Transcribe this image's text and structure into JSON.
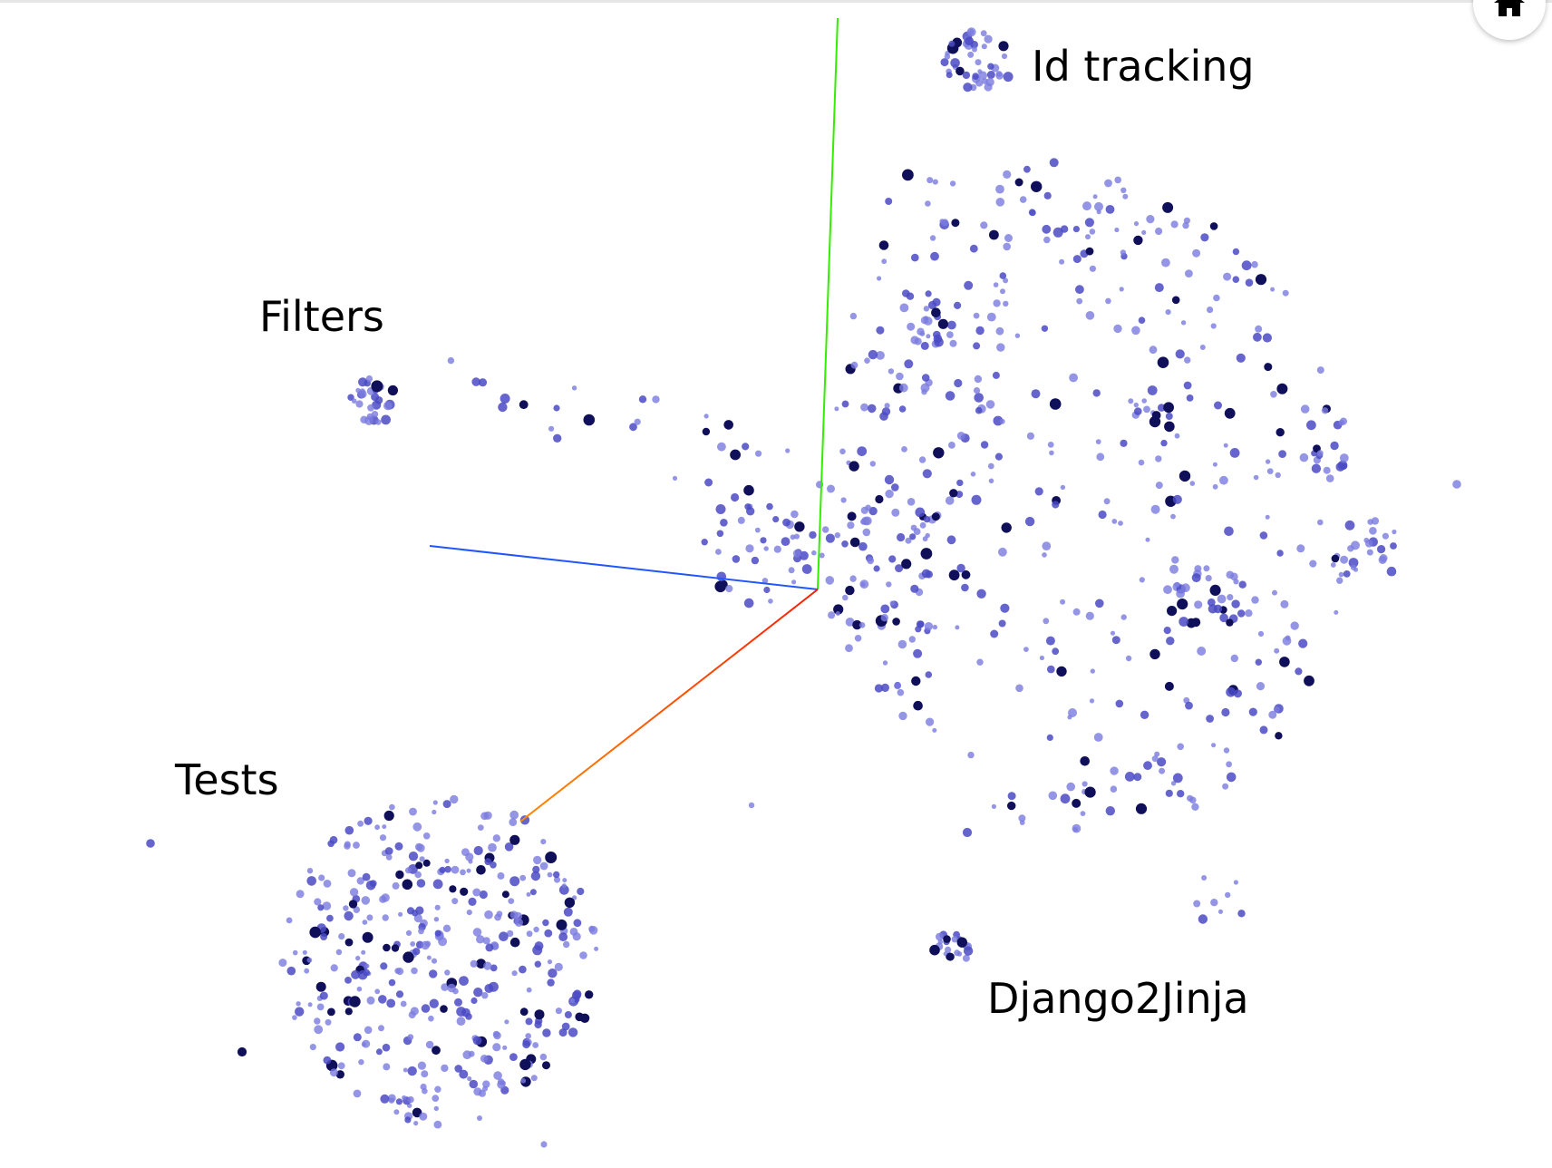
{
  "projector": {
    "labels": {
      "id_tracking": "Id tracking",
      "filters": "Filters",
      "tests": "Tests",
      "django2jinja": "Django2Jinja"
    },
    "home_button": {
      "icon": "home-icon"
    },
    "colors": {
      "point_light": "#7b7be0",
      "point_mid": "#4a4ac4",
      "point_dark": "#10105a",
      "axis_x": "#ff3300",
      "axis_y": "#33ee00",
      "axis_z": "#2255ff"
    }
  }
}
